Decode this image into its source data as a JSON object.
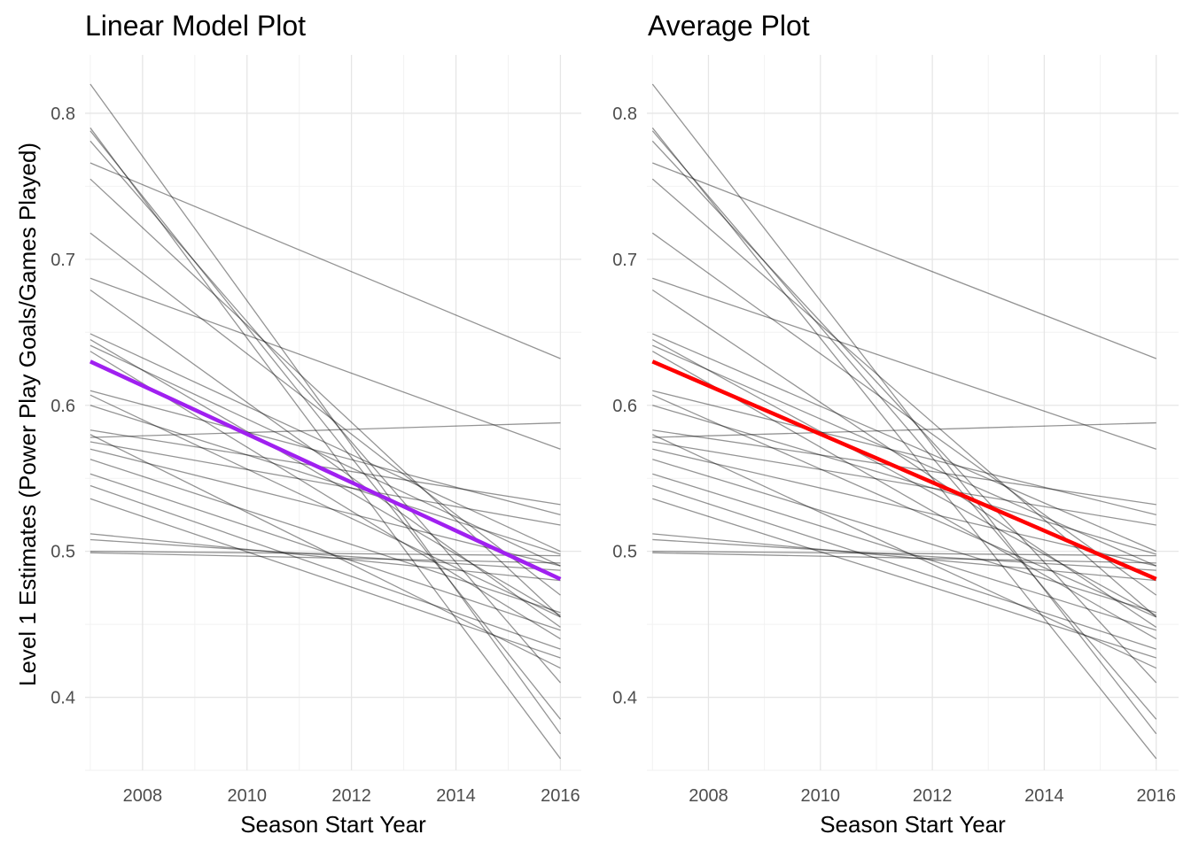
{
  "y_axis_label": "Level 1 Estimates (Power Play Goals/Games Played)",
  "chart_data": [
    {
      "type": "line",
      "title": "Linear Model Plot",
      "xlabel": "Season Start Year",
      "ylabel": "Level 1 Estimates (Power Play Goals/Games Played)",
      "xlim": [
        2006.9,
        2016.4
      ],
      "ylim": [
        0.35,
        0.84
      ],
      "x_ticks": [
        2008,
        2010,
        2012,
        2014,
        2016
      ],
      "y_ticks": [
        0.4,
        0.5,
        0.6,
        0.7,
        0.8
      ],
      "grid": true,
      "individual_line_color": "#888888",
      "highlight_color": "#a020f0",
      "individual_lines": [
        {
          "x": [
            2007,
            2016
          ],
          "y": [
            0.82,
            0.375
          ]
        },
        {
          "x": [
            2007,
            2016
          ],
          "y": [
            0.79,
            0.358
          ]
        },
        {
          "x": [
            2007,
            2016
          ],
          "y": [
            0.788,
            0.385
          ]
        },
        {
          "x": [
            2007,
            2016
          ],
          "y": [
            0.781,
            0.41
          ]
        },
        {
          "x": [
            2007,
            2016
          ],
          "y": [
            0.766,
            0.632
          ]
        },
        {
          "x": [
            2007,
            2016
          ],
          "y": [
            0.755,
            0.455
          ]
        },
        {
          "x": [
            2007,
            2016
          ],
          "y": [
            0.718,
            0.47
          ]
        },
        {
          "x": [
            2007,
            2016
          ],
          "y": [
            0.687,
            0.57
          ]
        },
        {
          "x": [
            2007,
            2016
          ],
          "y": [
            0.679,
            0.448
          ]
        },
        {
          "x": [
            2007,
            2016
          ],
          "y": [
            0.649,
            0.5
          ]
        },
        {
          "x": [
            2007,
            2016
          ],
          "y": [
            0.645,
            0.456
          ]
        },
        {
          "x": [
            2007,
            2016
          ],
          "y": [
            0.641,
            0.49
          ]
        },
        {
          "x": [
            2007,
            2016
          ],
          "y": [
            0.637,
            0.44
          ]
        },
        {
          "x": [
            2007,
            2016
          ],
          "y": [
            0.61,
            0.525
          ]
        },
        {
          "x": [
            2007,
            2016
          ],
          "y": [
            0.607,
            0.455
          ]
        },
        {
          "x": [
            2007,
            2016
          ],
          "y": [
            0.6,
            0.498
          ]
        },
        {
          "x": [
            2007,
            2016
          ],
          "y": [
            0.583,
            0.532
          ]
        },
        {
          "x": [
            2007,
            2016
          ],
          "y": [
            0.58,
            0.42
          ]
        },
        {
          "x": [
            2007,
            2016
          ],
          "y": [
            0.578,
            0.588
          ]
        },
        {
          "x": [
            2007,
            2016
          ],
          "y": [
            0.575,
            0.518
          ]
        },
        {
          "x": [
            2007,
            2016
          ],
          "y": [
            0.57,
            0.49
          ]
        },
        {
          "x": [
            2007,
            2016
          ],
          "y": [
            0.563,
            0.458
          ]
        },
        {
          "x": [
            2007,
            2016
          ],
          "y": [
            0.553,
            0.446
          ]
        },
        {
          "x": [
            2007,
            2016
          ],
          "y": [
            0.545,
            0.433
          ]
        },
        {
          "x": [
            2007,
            2016
          ],
          "y": [
            0.536,
            0.427
          ]
        },
        {
          "x": [
            2007,
            2016
          ],
          "y": [
            0.512,
            0.48
          ]
        },
        {
          "x": [
            2007,
            2016
          ],
          "y": [
            0.508,
            0.487
          ]
        },
        {
          "x": [
            2007,
            2016
          ],
          "y": [
            0.5,
            0.497
          ]
        },
        {
          "x": [
            2007,
            2016
          ],
          "y": [
            0.499,
            0.492
          ]
        }
      ],
      "highlight_line": {
        "x": [
          2007,
          2016
        ],
        "y": [
          0.63,
          0.481
        ]
      }
    },
    {
      "type": "line",
      "title": "Average Plot",
      "xlabel": "Season Start Year",
      "ylabel": "",
      "xlim": [
        2006.9,
        2016.4
      ],
      "ylim": [
        0.35,
        0.84
      ],
      "x_ticks": [
        2008,
        2010,
        2012,
        2014,
        2016
      ],
      "y_ticks": [
        0.4,
        0.5,
        0.6,
        0.7,
        0.8
      ],
      "grid": true,
      "individual_line_color": "#888888",
      "highlight_color": "#ff0000",
      "individual_lines": [
        {
          "x": [
            2007,
            2016
          ],
          "y": [
            0.82,
            0.375
          ]
        },
        {
          "x": [
            2007,
            2016
          ],
          "y": [
            0.79,
            0.358
          ]
        },
        {
          "x": [
            2007,
            2016
          ],
          "y": [
            0.788,
            0.385
          ]
        },
        {
          "x": [
            2007,
            2016
          ],
          "y": [
            0.781,
            0.41
          ]
        },
        {
          "x": [
            2007,
            2016
          ],
          "y": [
            0.766,
            0.632
          ]
        },
        {
          "x": [
            2007,
            2016
          ],
          "y": [
            0.755,
            0.455
          ]
        },
        {
          "x": [
            2007,
            2016
          ],
          "y": [
            0.718,
            0.47
          ]
        },
        {
          "x": [
            2007,
            2016
          ],
          "y": [
            0.687,
            0.57
          ]
        },
        {
          "x": [
            2007,
            2016
          ],
          "y": [
            0.679,
            0.448
          ]
        },
        {
          "x": [
            2007,
            2016
          ],
          "y": [
            0.649,
            0.5
          ]
        },
        {
          "x": [
            2007,
            2016
          ],
          "y": [
            0.645,
            0.456
          ]
        },
        {
          "x": [
            2007,
            2016
          ],
          "y": [
            0.641,
            0.49
          ]
        },
        {
          "x": [
            2007,
            2016
          ],
          "y": [
            0.637,
            0.44
          ]
        },
        {
          "x": [
            2007,
            2016
          ],
          "y": [
            0.61,
            0.525
          ]
        },
        {
          "x": [
            2007,
            2016
          ],
          "y": [
            0.607,
            0.455
          ]
        },
        {
          "x": [
            2007,
            2016
          ],
          "y": [
            0.6,
            0.498
          ]
        },
        {
          "x": [
            2007,
            2016
          ],
          "y": [
            0.583,
            0.532
          ]
        },
        {
          "x": [
            2007,
            2016
          ],
          "y": [
            0.58,
            0.42
          ]
        },
        {
          "x": [
            2007,
            2016
          ],
          "y": [
            0.578,
            0.588
          ]
        },
        {
          "x": [
            2007,
            2016
          ],
          "y": [
            0.575,
            0.518
          ]
        },
        {
          "x": [
            2007,
            2016
          ],
          "y": [
            0.57,
            0.49
          ]
        },
        {
          "x": [
            2007,
            2016
          ],
          "y": [
            0.563,
            0.458
          ]
        },
        {
          "x": [
            2007,
            2016
          ],
          "y": [
            0.553,
            0.446
          ]
        },
        {
          "x": [
            2007,
            2016
          ],
          "y": [
            0.545,
            0.433
          ]
        },
        {
          "x": [
            2007,
            2016
          ],
          "y": [
            0.536,
            0.427
          ]
        },
        {
          "x": [
            2007,
            2016
          ],
          "y": [
            0.512,
            0.48
          ]
        },
        {
          "x": [
            2007,
            2016
          ],
          "y": [
            0.508,
            0.487
          ]
        },
        {
          "x": [
            2007,
            2016
          ],
          "y": [
            0.5,
            0.497
          ]
        },
        {
          "x": [
            2007,
            2016
          ],
          "y": [
            0.499,
            0.492
          ]
        }
      ],
      "highlight_line": {
        "x": [
          2007,
          2016
        ],
        "y": [
          0.63,
          0.481
        ]
      }
    }
  ]
}
